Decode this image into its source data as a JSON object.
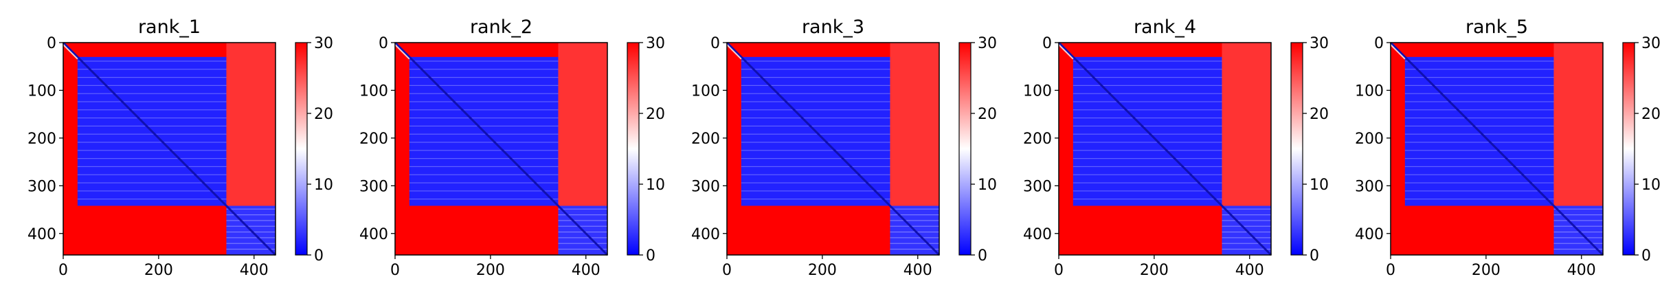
{
  "chart_data": [
    {
      "type": "heatmap",
      "title": "rank_1",
      "size": 445,
      "block_split": 342,
      "x_ticks": [
        0,
        200,
        400
      ],
      "y_ticks": [
        0,
        100,
        200,
        300,
        400
      ],
      "colorbar": {
        "min": 0,
        "max": 30,
        "ticks": [
          0,
          10,
          20,
          30
        ],
        "colormap": "bwr"
      },
      "regions": [
        {
          "rows": [
            30,
            342
          ],
          "cols": [
            30,
            342
          ],
          "value": 2
        },
        {
          "rows": [
            342,
            445
          ],
          "cols": [
            342,
            445
          ],
          "value": 3
        },
        {
          "rows": [
            0,
            342
          ],
          "cols": [
            342,
            445
          ],
          "value": 27
        },
        {
          "rows": [
            342,
            445
          ],
          "cols": [
            0,
            342
          ],
          "value": 30
        }
      ]
    },
    {
      "type": "heatmap",
      "title": "rank_2",
      "size": 445,
      "block_split": 342,
      "x_ticks": [
        0,
        200,
        400
      ],
      "y_ticks": [
        0,
        100,
        200,
        300,
        400
      ],
      "colorbar": {
        "min": 0,
        "max": 30,
        "ticks": [
          0,
          10,
          20,
          30
        ],
        "colormap": "bwr"
      },
      "regions": [
        {
          "rows": [
            30,
            342
          ],
          "cols": [
            30,
            342
          ],
          "value": 2
        },
        {
          "rows": [
            342,
            445
          ],
          "cols": [
            342,
            445
          ],
          "value": 3
        },
        {
          "rows": [
            0,
            342
          ],
          "cols": [
            342,
            445
          ],
          "value": 27
        },
        {
          "rows": [
            342,
            445
          ],
          "cols": [
            0,
            342
          ],
          "value": 30
        }
      ]
    },
    {
      "type": "heatmap",
      "title": "rank_3",
      "size": 445,
      "block_split": 342,
      "x_ticks": [
        0,
        200,
        400
      ],
      "y_ticks": [
        0,
        100,
        200,
        300,
        400
      ],
      "colorbar": {
        "min": 0,
        "max": 30,
        "ticks": [
          0,
          10,
          20,
          30
        ],
        "colormap": "bwr"
      },
      "regions": [
        {
          "rows": [
            30,
            342
          ],
          "cols": [
            30,
            342
          ],
          "value": 2
        },
        {
          "rows": [
            342,
            445
          ],
          "cols": [
            342,
            445
          ],
          "value": 3
        },
        {
          "rows": [
            0,
            342
          ],
          "cols": [
            342,
            445
          ],
          "value": 27
        },
        {
          "rows": [
            342,
            445
          ],
          "cols": [
            0,
            342
          ],
          "value": 30
        }
      ]
    },
    {
      "type": "heatmap",
      "title": "rank_4",
      "size": 445,
      "block_split": 342,
      "x_ticks": [
        0,
        200,
        400
      ],
      "y_ticks": [
        0,
        100,
        200,
        300,
        400
      ],
      "colorbar": {
        "min": 0,
        "max": 30,
        "ticks": [
          0,
          10,
          20,
          30
        ],
        "colormap": "bwr"
      },
      "regions": [
        {
          "rows": [
            30,
            342
          ],
          "cols": [
            30,
            342
          ],
          "value": 2
        },
        {
          "rows": [
            342,
            445
          ],
          "cols": [
            342,
            445
          ],
          "value": 3
        },
        {
          "rows": [
            0,
            342
          ],
          "cols": [
            342,
            445
          ],
          "value": 27
        },
        {
          "rows": [
            342,
            445
          ],
          "cols": [
            0,
            342
          ],
          "value": 30
        }
      ]
    },
    {
      "type": "heatmap",
      "title": "rank_5",
      "size": 445,
      "block_split": 342,
      "x_ticks": [
        0,
        200,
        400
      ],
      "y_ticks": [
        0,
        100,
        200,
        300,
        400
      ],
      "colorbar": {
        "min": 0,
        "max": 30,
        "ticks": [
          0,
          10,
          20,
          30
        ],
        "colormap": "bwr"
      },
      "regions": [
        {
          "rows": [
            30,
            342
          ],
          "cols": [
            30,
            342
          ],
          "value": 2
        },
        {
          "rows": [
            342,
            445
          ],
          "cols": [
            342,
            445
          ],
          "value": 3
        },
        {
          "rows": [
            0,
            342
          ],
          "cols": [
            342,
            445
          ],
          "value": 27
        },
        {
          "rows": [
            342,
            445
          ],
          "cols": [
            0,
            342
          ],
          "value": 30
        }
      ]
    }
  ]
}
